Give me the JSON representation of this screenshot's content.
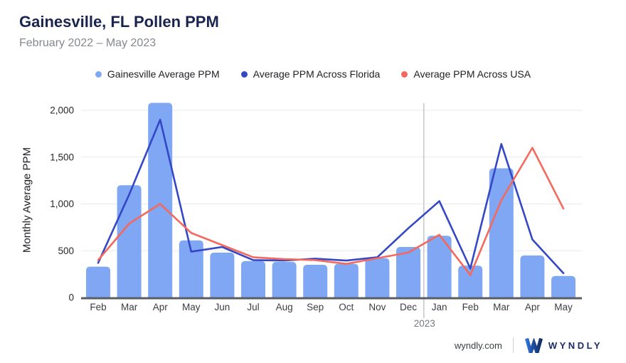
{
  "header": {
    "title": "Gainesville, FL Pollen PPM",
    "subtitle": "February 2022 – May 2023"
  },
  "legend": [
    {
      "label": "Gainesville Average PPM",
      "color": "#7fa7f4"
    },
    {
      "label": "Average PPM Across Florida",
      "color": "#3447c5"
    },
    {
      "label": "Average PPM Across USA",
      "color": "#f4695e"
    }
  ],
  "chart_data": {
    "type": "bar",
    "title": "Gainesville, FL Pollen PPM",
    "subtitle": "February 2022 – May 2023",
    "ylabel": "Monthly Average PPM",
    "categories": [
      "Feb",
      "Mar",
      "Apr",
      "May",
      "Jun",
      "Jul",
      "Aug",
      "Sep",
      "Oct",
      "Nov",
      "Dec",
      "Jan",
      "Feb",
      "Mar",
      "Apr",
      "May"
    ],
    "year_label": "2023",
    "year_divider_index": 10,
    "y_ticks": [
      0,
      500,
      1000,
      1500,
      2000
    ],
    "y_tick_labels": [
      "0",
      "500",
      "1,000",
      "1,500",
      "2,000"
    ],
    "ylim": [
      0,
      2080
    ],
    "grid": true,
    "legend_position": "top",
    "series": [
      {
        "name": "Gainesville Average PPM",
        "type": "bar",
        "color": "#7fa7f4",
        "values": [
          330,
          1200,
          2080,
          610,
          480,
          390,
          380,
          350,
          360,
          420,
          540,
          660,
          340,
          1380,
          450,
          230
        ]
      },
      {
        "name": "Average PPM Across Florida",
        "type": "line",
        "color": "#3447c5",
        "values": [
          370,
          1100,
          1900,
          490,
          540,
          400,
          395,
          415,
          395,
          430,
          740,
          1030,
          310,
          1640,
          620,
          260
        ]
      },
      {
        "name": "Average PPM Across USA",
        "type": "line",
        "color": "#f4695e",
        "values": [
          400,
          790,
          1000,
          690,
          560,
          430,
          410,
          400,
          360,
          420,
          480,
          670,
          240,
          1040,
          1600,
          950
        ]
      }
    ]
  },
  "footer": {
    "site": "wyndly.com",
    "brand": "WYNDLY"
  }
}
